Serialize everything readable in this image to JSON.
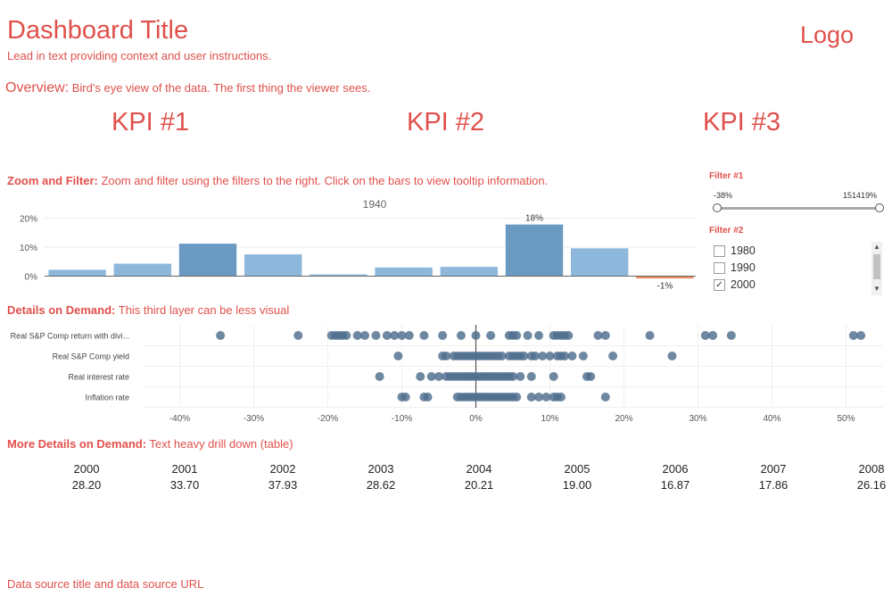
{
  "header": {
    "title": "Dashboard Title",
    "lead": "Lead in text providing context and user instructions.",
    "logo": "Logo"
  },
  "overview": {
    "heading": "Overview:",
    "text": "Bird's eye view of the data. The first thing the viewer sees."
  },
  "kpis": [
    "KPI #1",
    "KPI #2",
    "KPI #3"
  ],
  "zoom_filter": {
    "heading": "Zoom and Filter:",
    "text": "Zoom and filter using the filters to the right. Click on the bars to view tooltip information."
  },
  "filters": {
    "filter1": {
      "label": "Filter #1",
      "min_label": "-38%",
      "max_label": "151419%"
    },
    "filter2": {
      "label": "Filter #2",
      "options": [
        {
          "label": "1980",
          "checked": false
        },
        {
          "label": "1990",
          "checked": false
        },
        {
          "label": "2000",
          "checked": true
        }
      ]
    }
  },
  "details": {
    "heading": "Details on Demand:",
    "text": "This third layer can be less visual"
  },
  "more_details": {
    "heading": "More Details on Demand:",
    "text": "Text heavy drill down (table)"
  },
  "table": {
    "columns": [
      {
        "year": "2000",
        "value": "28.20"
      },
      {
        "year": "2001",
        "value": "33.70"
      },
      {
        "year": "2002",
        "value": "37.93"
      },
      {
        "year": "2003",
        "value": "28.62"
      },
      {
        "year": "2004",
        "value": "20.21"
      },
      {
        "year": "2005",
        "value": "19.00"
      },
      {
        "year": "2006",
        "value": "16.87"
      },
      {
        "year": "2007",
        "value": "17.86"
      },
      {
        "year": "2008",
        "value": "26.16"
      }
    ]
  },
  "footer": {
    "source": "Data source title and data source URL"
  },
  "colors": {
    "accent": "#e0504b",
    "bar_light": "#8db8dc",
    "bar_dark": "#6a99c2",
    "bar_negative": "#f08b62",
    "dot": "#4e6e8e"
  },
  "chart_data": [
    {
      "type": "bar",
      "title": "1940",
      "ylim": [
        -2,
        22
      ],
      "yticks": [
        "20%",
        "10%",
        "0%"
      ],
      "ytick_values": [
        20,
        10,
        0
      ],
      "values": [
        2.2,
        4.3,
        11.2,
        7.5,
        0.6,
        3.0,
        3.2,
        17.8,
        9.6,
        -0.8
      ],
      "highlight": [
        false,
        false,
        true,
        false,
        false,
        false,
        false,
        true,
        false,
        false
      ],
      "data_labels": [
        {
          "index": 7,
          "text": "18%"
        },
        {
          "index": 9,
          "text": "-1%"
        }
      ]
    },
    {
      "type": "scatter",
      "xlim": [
        -45,
        55
      ],
      "xticks": [
        "-40%",
        "-30%",
        "-20%",
        "-10%",
        "0%",
        "10%",
        "20%",
        "30%",
        "40%",
        "50%"
      ],
      "xtick_values": [
        -40,
        -30,
        -20,
        -10,
        0,
        10,
        20,
        30,
        40,
        50
      ],
      "series": [
        {
          "name": "Real S&P Comp return with divi...",
          "values": [
            -34.5,
            -24,
            -19.5,
            -19,
            -18.5,
            -18,
            -17.5,
            -16,
            -15,
            -13.5,
            -12,
            -11,
            -10,
            -9,
            -7,
            -4.5,
            -2,
            0,
            2,
            4.5,
            5,
            5.5,
            7,
            8.5,
            10.5,
            11,
            11.5,
            12,
            12.5,
            16.5,
            17.5,
            23.5,
            31,
            32,
            34.5,
            51,
            52
          ]
        },
        {
          "name": "Real S&P Comp yield",
          "values": [
            -10.5,
            -4.5,
            -4,
            -3,
            -2.5,
            -2,
            -1.5,
            -1,
            -0.5,
            0,
            0.5,
            1,
            1.5,
            2,
            2.5,
            3,
            3.5,
            4.5,
            5,
            5.5,
            6,
            6.5,
            7.5,
            8,
            9,
            10,
            11,
            11.5,
            12,
            13,
            14.5,
            18.5,
            26.5
          ]
        },
        {
          "name": "Real interest rate",
          "values": [
            -13,
            -7.5,
            -6,
            -5,
            -4,
            -3.5,
            -3,
            -2.5,
            -2,
            -1.5,
            -1,
            -0.5,
            0,
            0.5,
            1,
            1.5,
            2,
            2.5,
            3,
            3.5,
            4,
            4.5,
            5,
            6,
            7.5,
            10.5,
            15,
            15.5
          ]
        },
        {
          "name": "Inflation rate",
          "values": [
            -10,
            -9.5,
            -7,
            -6.5,
            -2.5,
            -2,
            -1.5,
            -1,
            -0.5,
            0,
            0.5,
            1,
            1.5,
            2,
            2.5,
            3,
            3.5,
            4,
            4.5,
            5,
            5.5,
            7.5,
            8.5,
            9.5,
            10.5,
            11,
            11.5,
            17.5
          ]
        }
      ]
    }
  ]
}
